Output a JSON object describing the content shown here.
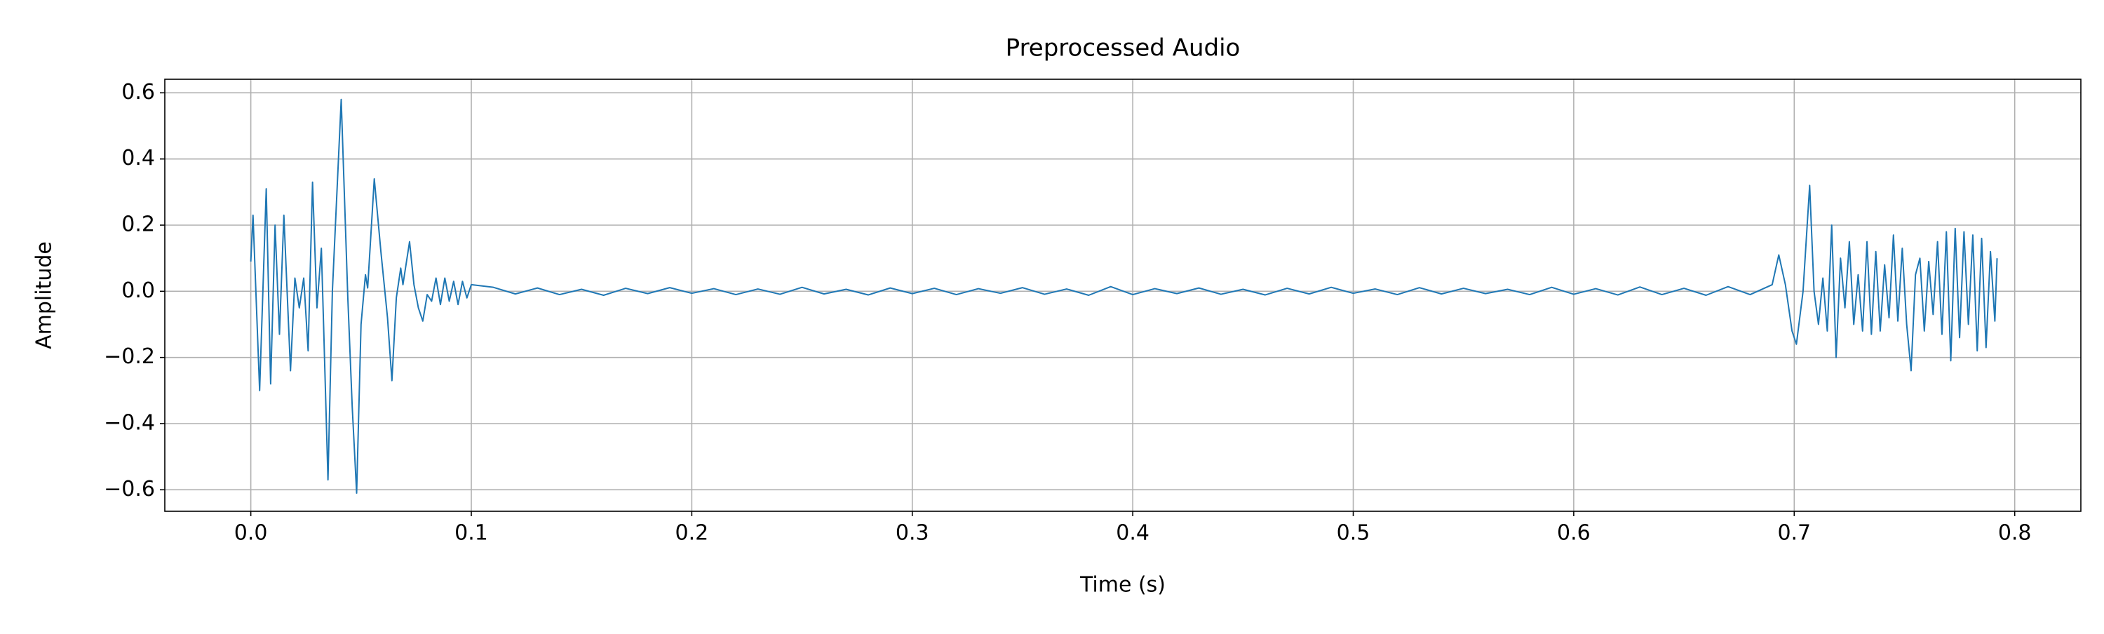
{
  "chart_data": {
    "type": "line",
    "title": "Preprocessed Audio",
    "xlabel": "Time (s)",
    "ylabel": "Amplitude",
    "color": "#1f77b4",
    "grid": true,
    "xlim": [
      -0.039,
      0.83
    ],
    "ylim": [
      -0.665,
      0.641
    ],
    "xticks": [
      {
        "value": 0,
        "label": "0.0"
      },
      0.1,
      0.2,
      0.3,
      0.4,
      0.5,
      0.6,
      0.7,
      0.8
    ],
    "yticks": [
      {
        "value": -0.6,
        "label": "−0.6"
      },
      {
        "value": -0.4,
        "label": "−0.4"
      },
      {
        "value": -0.2,
        "label": "−0.2"
      },
      {
        "value": 0,
        "label": "0.0"
      },
      0.2,
      0.4,
      0.6
    ],
    "x": [
      0,
      0.001,
      0.004,
      0.007,
      0.009,
      0.011,
      0.013,
      0.015,
      0.018,
      0.02,
      0.022,
      0.024,
      0.026,
      0.028,
      0.03,
      0.032,
      0.033,
      0.035,
      0.037,
      0.041,
      0.044,
      0.046,
      0.048,
      0.05,
      0.052,
      0.053,
      0.056,
      0.059,
      0.062,
      0.064,
      0.066,
      0.068,
      0.069,
      0.072,
      0.074,
      0.076,
      0.078,
      0.08,
      0.082,
      0.084,
      0.086,
      0.088,
      0.09,
      0.092,
      0.094,
      0.096,
      0.098,
      0.1,
      0.11,
      0.12,
      0.13,
      0.14,
      0.15,
      0.16,
      0.17,
      0.18,
      0.19,
      0.2,
      0.21,
      0.22,
      0.23,
      0.24,
      0.25,
      0.26,
      0.27,
      0.28,
      0.29,
      0.3,
      0.31,
      0.32,
      0.33,
      0.34,
      0.35,
      0.36,
      0.37,
      0.38,
      0.39,
      0.4,
      0.41,
      0.42,
      0.43,
      0.44,
      0.45,
      0.46,
      0.47,
      0.48,
      0.49,
      0.5,
      0.51,
      0.52,
      0.53,
      0.54,
      0.55,
      0.56,
      0.57,
      0.58,
      0.59,
      0.6,
      0.61,
      0.62,
      0.63,
      0.64,
      0.65,
      0.66,
      0.67,
      0.68,
      0.69,
      0.693,
      0.696,
      0.699,
      0.701,
      0.704,
      0.707,
      0.709,
      0.711,
      0.713,
      0.715,
      0.717,
      0.719,
      0.721,
      0.723,
      0.725,
      0.727,
      0.729,
      0.731,
      0.733,
      0.735,
      0.737,
      0.739,
      0.741,
      0.743,
      0.745,
      0.747,
      0.749,
      0.751,
      0.753,
      0.755,
      0.757,
      0.759,
      0.761,
      0.763,
      0.765,
      0.767,
      0.769,
      0.771,
      0.773,
      0.775,
      0.777,
      0.779,
      0.781,
      0.783,
      0.785,
      0.787,
      0.789,
      0.791,
      0.792
    ],
    "values": [
      0.09,
      0.23,
      -0.3,
      0.31,
      -0.28,
      0.2,
      -0.13,
      0.23,
      -0.24,
      0.04,
      -0.05,
      0.04,
      -0.18,
      0.33,
      -0.05,
      0.13,
      -0.1,
      -0.57,
      0.0,
      0.58,
      -0.02,
      -0.35,
      -0.61,
      -0.1,
      0.05,
      0.01,
      0.34,
      0.12,
      -0.08,
      -0.27,
      -0.02,
      0.07,
      0.02,
      0.15,
      0.02,
      -0.05,
      -0.09,
      -0.01,
      -0.03,
      0.04,
      -0.04,
      0.04,
      -0.03,
      0.03,
      -0.04,
      0.03,
      -0.02,
      0.02,
      0.012,
      -0.008,
      0.01,
      -0.01,
      0.006,
      -0.012,
      0.009,
      -0.007,
      0.011,
      -0.006,
      0.008,
      -0.01,
      0.007,
      -0.009,
      0.012,
      -0.008,
      0.006,
      -0.011,
      0.01,
      -0.007,
      0.009,
      -0.01,
      0.008,
      -0.006,
      0.011,
      -0.009,
      0.007,
      -0.012,
      0.014,
      -0.01,
      0.008,
      -0.007,
      0.01,
      -0.009,
      0.006,
      -0.011,
      0.009,
      -0.008,
      0.012,
      -0.006,
      0.007,
      -0.01,
      0.011,
      -0.008,
      0.009,
      -0.007,
      0.006,
      -0.01,
      0.012,
      -0.009,
      0.008,
      -0.011,
      0.013,
      -0.01,
      0.009,
      -0.012,
      0.014,
      -0.01,
      0.02,
      0.11,
      0.02,
      -0.12,
      -0.16,
      0.0,
      0.32,
      0.0,
      -0.1,
      0.04,
      -0.12,
      0.2,
      -0.2,
      0.1,
      -0.05,
      0.15,
      -0.1,
      0.05,
      -0.12,
      0.15,
      -0.13,
      0.12,
      -0.12,
      0.08,
      -0.08,
      0.17,
      -0.09,
      0.13,
      -0.1,
      -0.24,
      0.05,
      0.1,
      -0.12,
      0.09,
      -0.07,
      0.15,
      -0.13,
      0.18,
      -0.21,
      0.19,
      -0.14,
      0.18,
      -0.1,
      0.17,
      -0.18,
      0.16,
      -0.17,
      0.12,
      -0.09,
      0.1
    ]
  }
}
